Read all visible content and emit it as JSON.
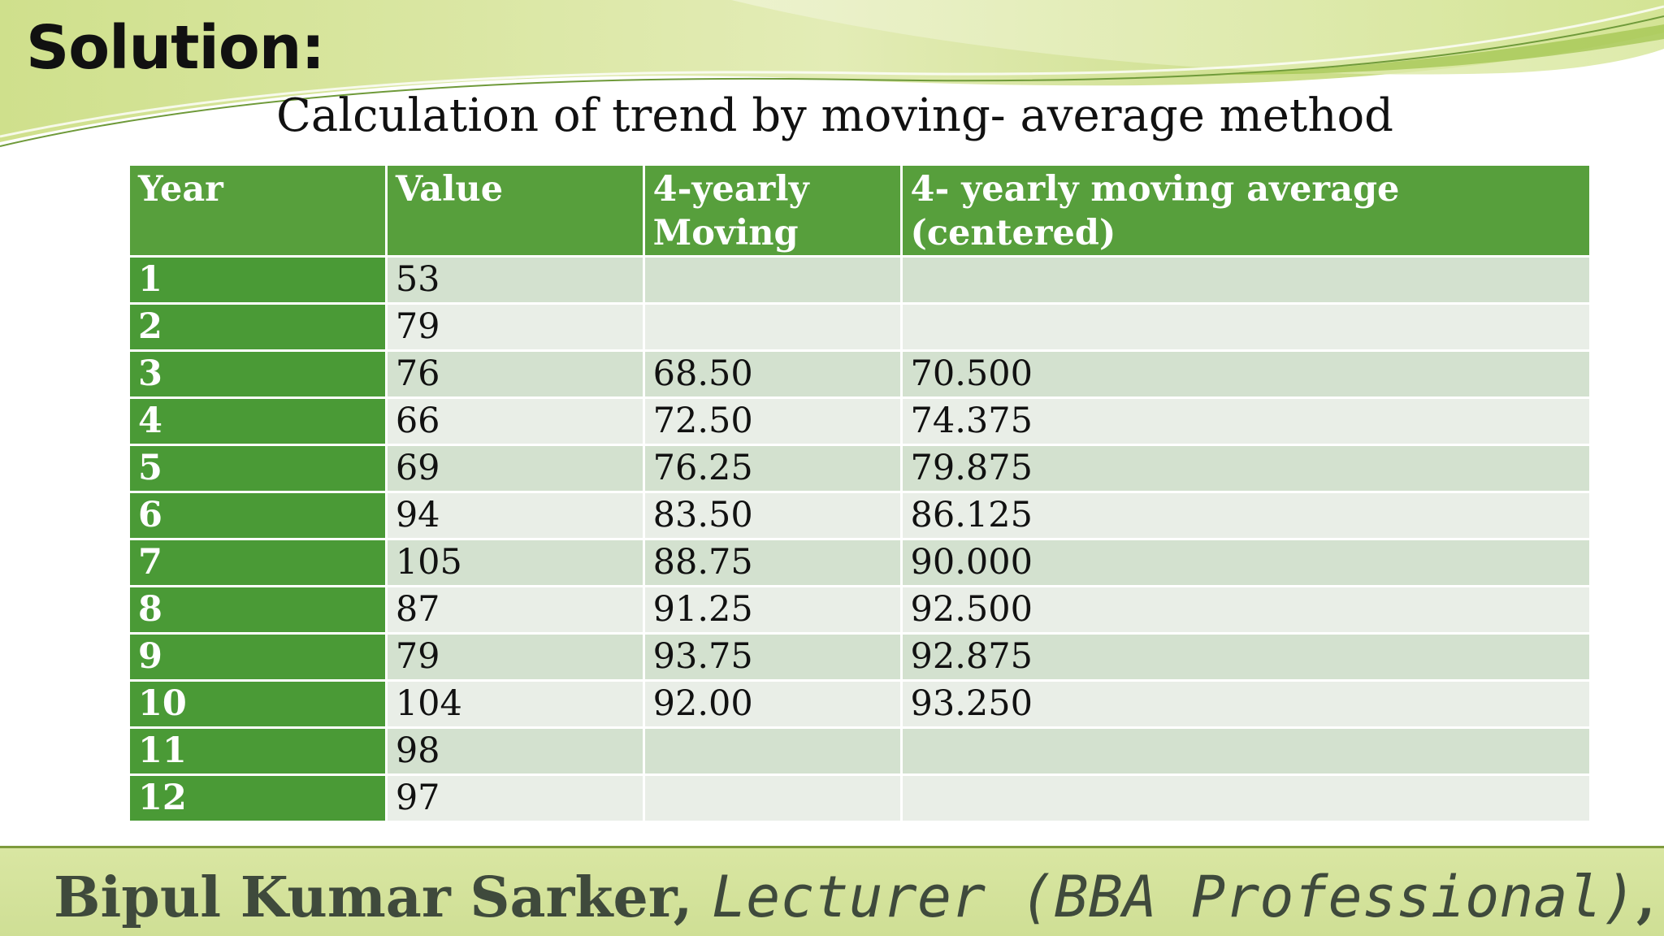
{
  "slide": {
    "heading": "Solution:",
    "subtitle": "Calculation of trend by moving- average method"
  },
  "colors": {
    "header_fill": "#579f3c",
    "year_column_fill": "#4a9a36",
    "row_odd_fill": "#d3e1cf",
    "row_even_fill": "#e9eee7",
    "footer_fill": "#d4e39b"
  },
  "table": {
    "headers": [
      "Year",
      "Value",
      "4-yearly Moving",
      "4- yearly moving average (centered)"
    ],
    "rows": [
      {
        "year": "1",
        "value": "53",
        "moving": "",
        "centered": ""
      },
      {
        "year": "2",
        "value": "79",
        "moving": "",
        "centered": ""
      },
      {
        "year": "3",
        "value": "76",
        "moving": "68.50",
        "centered": "70.500"
      },
      {
        "year": "4",
        "value": "66",
        "moving": "72.50",
        "centered": "74.375"
      },
      {
        "year": "5",
        "value": "69",
        "moving": "76.25",
        "centered": "79.875"
      },
      {
        "year": "6",
        "value": "94",
        "moving": "83.50",
        "centered": "86.125"
      },
      {
        "year": "7",
        "value": "105",
        "moving": "88.75",
        "centered": "90.000"
      },
      {
        "year": "8",
        "value": "87",
        "moving": "91.25",
        "centered": "92.500"
      },
      {
        "year": "9",
        "value": "79",
        "moving": "93.75",
        "centered": "92.875"
      },
      {
        "year": "10",
        "value": "104",
        "moving": "92.00",
        "centered": "93.250"
      },
      {
        "year": "11",
        "value": "98",
        "moving": "",
        "centered": ""
      },
      {
        "year": "12",
        "value": "97",
        "moving": "",
        "centered": ""
      }
    ]
  },
  "footer": {
    "name": "Bipul Kumar Sarker, ",
    "role": "Lecturer (BBA Professional)",
    "institution": ", HUBC"
  }
}
